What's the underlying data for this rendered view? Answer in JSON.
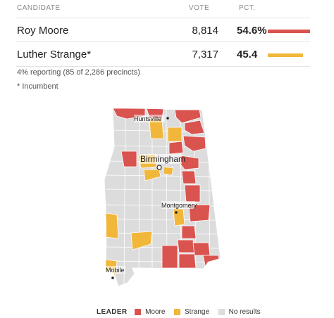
{
  "table": {
    "headers": {
      "candidate": "CANDIDATE",
      "vote": "VOTE",
      "pct": "PCT."
    },
    "candidates": [
      {
        "name": "Roy Moore",
        "vote": "8,814",
        "pct": "54.6%",
        "pct_value": 54.6,
        "color": "#d9534f"
      },
      {
        "name": "Luther Strange*",
        "vote": "7,317",
        "pct": "45.4",
        "pct_value": 45.4,
        "color": "#f0b73b"
      }
    ]
  },
  "notes": {
    "reporting": "4% reporting (85 of 2,286 precincts)",
    "incumbent": "* Incumbent"
  },
  "map": {
    "cities": {
      "huntsville": "Huntsville",
      "birmingham": "Birmingham",
      "montgomery": "Montgomery",
      "mobile": "Mobile"
    },
    "colors": {
      "moore": "#d9534f",
      "strange": "#f0b73b",
      "no_results": "#dcdcdc",
      "borders": "#ffffff"
    }
  },
  "legend": {
    "title": "LEADER",
    "items": [
      {
        "label": "Moore",
        "color": "#d9534f"
      },
      {
        "label": "Strange",
        "color": "#f0b73b"
      },
      {
        "label": "No results",
        "color": "#dcdcdc"
      }
    ]
  }
}
